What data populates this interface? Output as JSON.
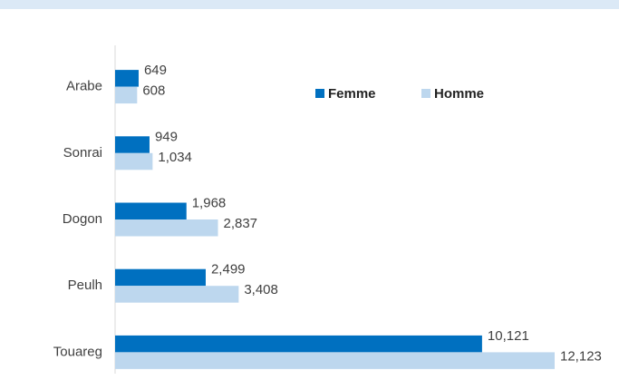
{
  "chart_data": {
    "type": "bar",
    "orientation": "horizontal",
    "categories": [
      "Arabe",
      "Sonrai",
      "Dogon",
      "Peulh",
      "Touareg"
    ],
    "series": [
      {
        "name": "Femme",
        "color": "#0070c0",
        "values": [
          649,
          949,
          1968,
          2499,
          10121
        ],
        "value_labels": [
          "649",
          "949",
          "1,968",
          "2,499",
          "10,121"
        ]
      },
      {
        "name": "Homme",
        "color": "#bdd7ee",
        "values": [
          608,
          1034,
          2837,
          3408,
          12123
        ],
        "value_labels": [
          "608",
          "1,034",
          "2,837",
          "3,408",
          "12,123"
        ]
      }
    ],
    "legend": "top-right"
  }
}
